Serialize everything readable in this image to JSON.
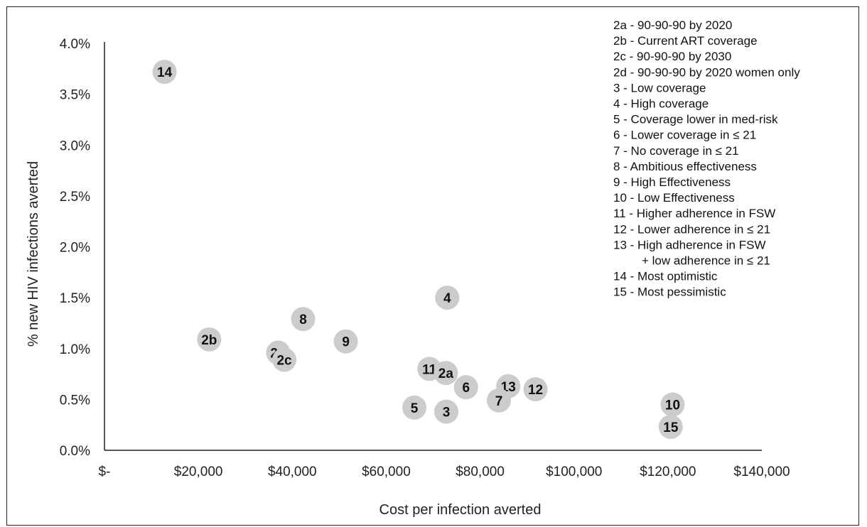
{
  "chart_data": {
    "type": "scatter",
    "title": "",
    "xlabel": "Cost per infection averted",
    "ylabel": "% new HIV infections averted",
    "xlim": [
      0,
      140000
    ],
    "ylim": [
      0,
      4.0
    ],
    "x_ticks": [
      0,
      20000,
      40000,
      60000,
      80000,
      100000,
      120000,
      140000
    ],
    "x_tick_labels": [
      "$-",
      "$20,000",
      "$40,000",
      "$60,000",
      "$80,000",
      "$100,000",
      "$120,000",
      "$140,000"
    ],
    "y_ticks": [
      0,
      0.5,
      1.0,
      1.5,
      2.0,
      2.5,
      3.0,
      3.5,
      4.0
    ],
    "y_tick_labels": [
      "0.0%",
      "0.5%",
      "1.0%",
      "1.5%",
      "2.0%",
      "2.5%",
      "3.0%",
      "3.5%",
      "4.0%"
    ],
    "grid": false,
    "legend_position": "top-right",
    "marker_color": "#cccccc",
    "points": [
      {
        "label": "14",
        "x": 12800,
        "y": 3.72
      },
      {
        "label": "2b",
        "x": 22300,
        "y": 1.09
      },
      {
        "label": "2d",
        "x": 37000,
        "y": 0.96
      },
      {
        "label": "2c",
        "x": 38300,
        "y": 0.89
      },
      {
        "label": "8",
        "x": 42300,
        "y": 1.29
      },
      {
        "label": "9",
        "x": 51400,
        "y": 1.07
      },
      {
        "label": "4",
        "x": 73000,
        "y": 1.5
      },
      {
        "label": "11",
        "x": 69200,
        "y": 0.8
      },
      {
        "label": "2a",
        "x": 72700,
        "y": 0.76
      },
      {
        "label": "6",
        "x": 77000,
        "y": 0.62
      },
      {
        "label": "13",
        "x": 86000,
        "y": 0.63
      },
      {
        "label": "12",
        "x": 91800,
        "y": 0.6
      },
      {
        "label": "7",
        "x": 84000,
        "y": 0.49
      },
      {
        "label": "5",
        "x": 66000,
        "y": 0.42
      },
      {
        "label": "3",
        "x": 72800,
        "y": 0.38
      },
      {
        "label": "10",
        "x": 121000,
        "y": 0.45
      },
      {
        "label": "15",
        "x": 120600,
        "y": 0.23
      }
    ],
    "legend": [
      "2a - 90-90-90 by 2020",
      "2b - Current ART coverage",
      "2c - 90-90-90 by 2030",
      "2d - 90-90-90 by 2020 women only",
      "3 - Low coverage",
      "4 - High coverage",
      "5 - Coverage lower in med-risk",
      "6 - Lower coverage in ≤ 21",
      "7 - No coverage in ≤ 21",
      "8 - Ambitious effectiveness",
      "9 - High Effectiveness",
      "10 - Low Effectiveness",
      "11 - Higher adherence in FSW",
      "12 - Lower adherence in ≤ 21",
      "13 - High adherence in FSW",
      "+ low adherence in ≤ 21",
      "14 - Most optimistic",
      "15 - Most pessimistic"
    ]
  }
}
